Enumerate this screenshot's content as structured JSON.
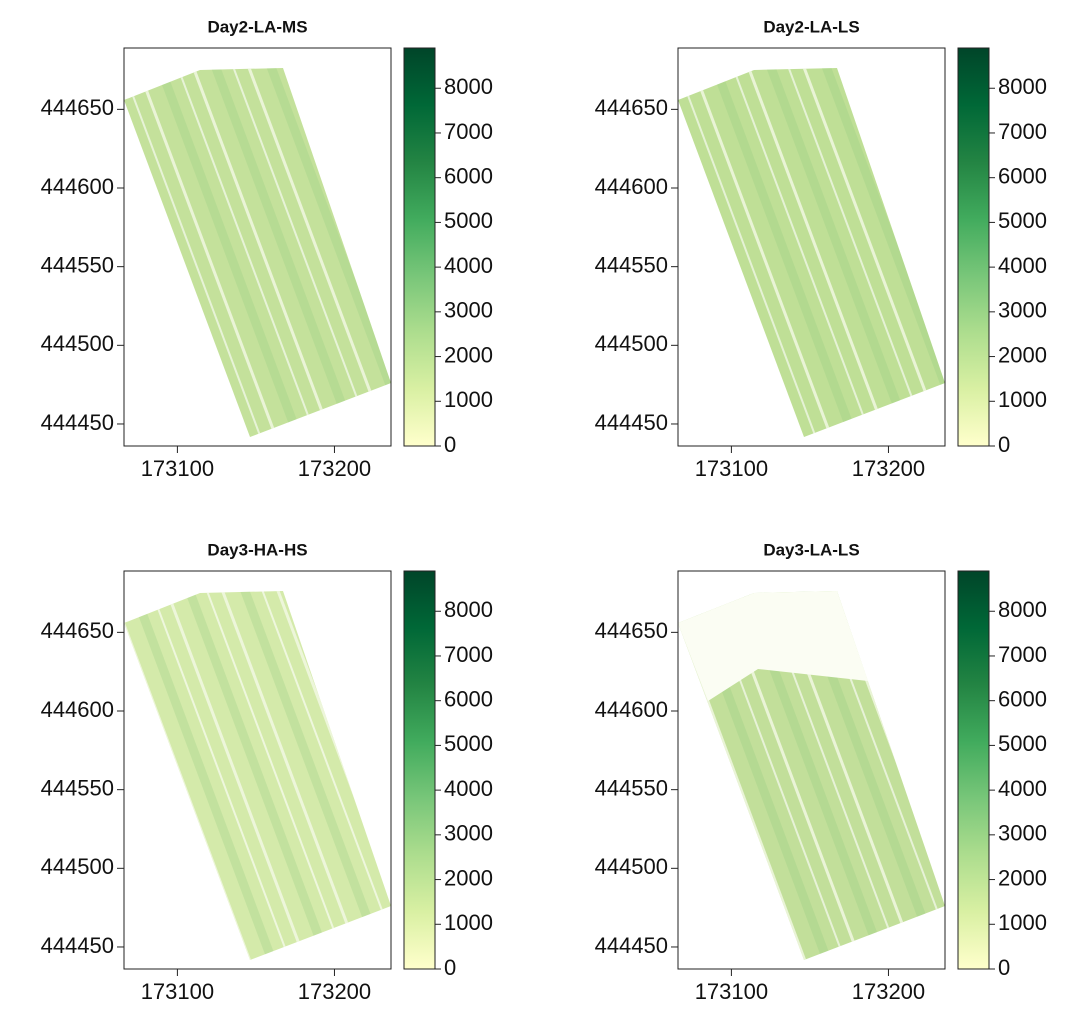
{
  "chart_data": [
    {
      "type": "raster",
      "title": "Day2-LA-MS",
      "xlim": [
        173066,
        173236
      ],
      "ylim": [
        444436,
        444689
      ],
      "xticks": [
        173100,
        173200
      ],
      "yticks": [
        444450,
        444500,
        444550,
        444600,
        444650
      ],
      "zlim": [
        0,
        8900
      ],
      "zticks": [
        0,
        1000,
        2000,
        3000,
        4000,
        5000,
        6000,
        7000,
        8000
      ],
      "colors": [
        "#ffffcc",
        "#d9f0a3",
        "#addd8e",
        "#78c679",
        "#41ab5d",
        "#238443",
        "#006837",
        "#004529"
      ]
    },
    {
      "type": "raster",
      "title": "Day2-LA-LS",
      "xlim": [
        173066,
        173236
      ],
      "ylim": [
        444436,
        444689
      ],
      "xticks": [
        173100,
        173200
      ],
      "yticks": [
        444450,
        444500,
        444550,
        444600,
        444650
      ],
      "zlim": [
        0,
        8900
      ],
      "zticks": [
        0,
        1000,
        2000,
        3000,
        4000,
        5000,
        6000,
        7000,
        8000
      ],
      "colors": [
        "#ffffcc",
        "#d9f0a3",
        "#addd8e",
        "#78c679",
        "#41ab5d",
        "#238443",
        "#006837",
        "#004529"
      ]
    },
    {
      "type": "raster",
      "title": "Day3-HA-HS",
      "xlim": [
        173066,
        173236
      ],
      "ylim": [
        444436,
        444689
      ],
      "xticks": [
        173100,
        173200
      ],
      "yticks": [
        444450,
        444500,
        444550,
        444600,
        444650
      ],
      "zlim": [
        0,
        8900
      ],
      "zticks": [
        0,
        1000,
        2000,
        3000,
        4000,
        5000,
        6000,
        7000,
        8000
      ],
      "colors": [
        "#ffffcc",
        "#d9f0a3",
        "#addd8e",
        "#78c679",
        "#41ab5d",
        "#238443",
        "#006837",
        "#004529"
      ]
    },
    {
      "type": "raster",
      "title": "Day3-LA-LS",
      "xlim": [
        173066,
        173236
      ],
      "ylim": [
        444436,
        444689
      ],
      "xticks": [
        173100,
        173200
      ],
      "yticks": [
        444450,
        444500,
        444550,
        444600,
        444650
      ],
      "zlim": [
        0,
        8900
      ],
      "zticks": [
        0,
        1000,
        2000,
        3000,
        4000,
        5000,
        6000,
        7000,
        8000
      ],
      "colors": [
        "#ffffcc",
        "#d9f0a3",
        "#addd8e",
        "#78c679",
        "#41ab5d",
        "#238443",
        "#006837",
        "#004529"
      ]
    }
  ]
}
